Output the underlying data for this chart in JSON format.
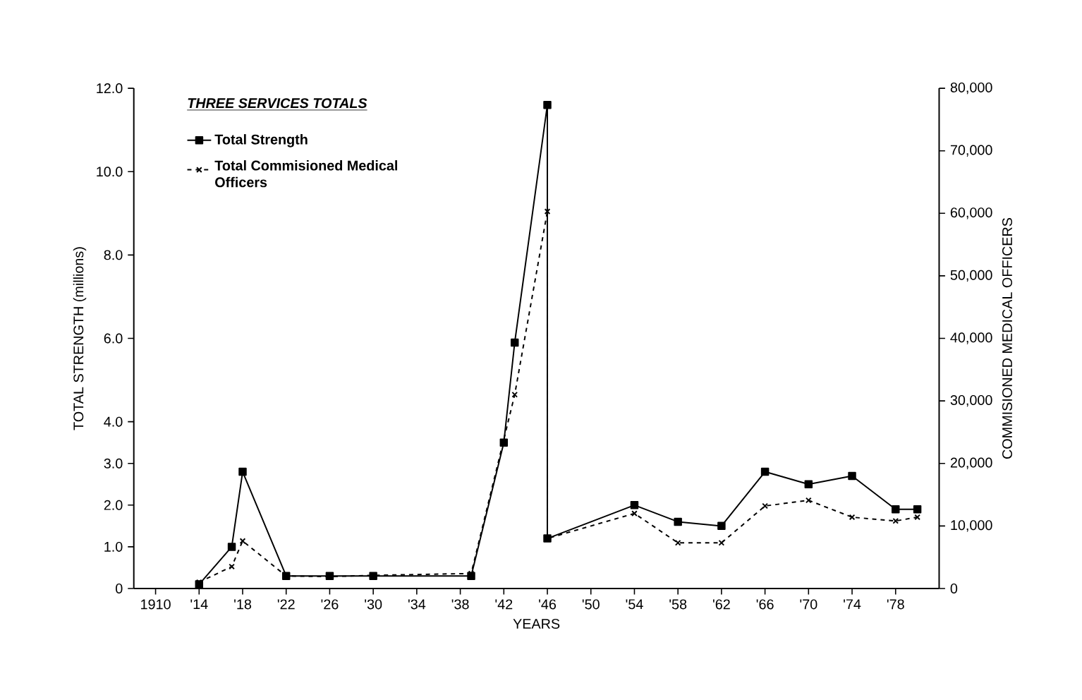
{
  "chart_data": {
    "type": "line",
    "legend_title": "THREE SERVICES TOTALS",
    "xlabel": "YEARS",
    "ylabel": "TOTAL STRENGTH (millions)",
    "y2label": "COMMISIONED MEDICAL OFFICERS",
    "legend": "top left",
    "xlim": [
      1908,
      1982
    ],
    "xticks": [
      1910,
      {
        "value": 1914,
        "label": "'14"
      },
      {
        "value": 1918,
        "label": "'18"
      },
      {
        "value": 1922,
        "label": "'22"
      },
      {
        "value": 1926,
        "label": "'26"
      },
      {
        "value": 1930,
        "label": "'30"
      },
      {
        "value": 1934,
        "label": "'34"
      },
      {
        "value": 1938,
        "label": "'38"
      },
      {
        "value": 1942,
        "label": "'42"
      },
      {
        "value": 1946,
        "label": "'46"
      },
      {
        "value": 1950,
        "label": "'50"
      },
      {
        "value": 1954,
        "label": "'54"
      },
      {
        "value": 1958,
        "label": "'58"
      },
      {
        "value": 1962,
        "label": "'62"
      },
      {
        "value": 1966,
        "label": "'66"
      },
      {
        "value": 1970,
        "label": "'70"
      },
      {
        "value": 1974,
        "label": "'74"
      },
      {
        "value": 1978,
        "label": "'78"
      }
    ],
    "ylim": [
      0,
      12
    ],
    "yticks": [
      0,
      {
        "value": 1,
        "label": "1.0"
      },
      {
        "value": 2,
        "label": "2.0"
      },
      {
        "value": 3,
        "label": "3.0"
      },
      {
        "value": 4,
        "label": "4.0"
      },
      {
        "value": 6,
        "label": "6.0"
      },
      {
        "value": 8,
        "label": "8.0"
      },
      {
        "value": 10,
        "label": "10.0"
      },
      {
        "value": 12,
        "label": "12.0"
      }
    ],
    "y2lim": [
      0,
      80000
    ],
    "y2ticks": [
      0,
      {
        "value": 10000,
        "label": "10,000"
      },
      {
        "value": 20000,
        "label": "20,000"
      },
      {
        "value": 30000,
        "label": "30,000"
      },
      {
        "value": 40000,
        "label": "40,000"
      },
      {
        "value": 50000,
        "label": "50,000"
      },
      {
        "value": 60000,
        "label": "60,000"
      },
      {
        "value": 70000,
        "label": "70,000"
      },
      {
        "value": 80000,
        "label": "80,000"
      }
    ],
    "series": [
      {
        "name": "Total Strength",
        "color": "#000000",
        "marker": "square",
        "line_style": "solid",
        "x": [
          1914,
          1917,
          1918,
          1922,
          1926,
          1930,
          1939,
          1942,
          1943,
          1946,
          1946,
          1954,
          1958,
          1962,
          1966,
          1970,
          1974,
          1978,
          1980
        ],
        "values": [
          0.1,
          1.0,
          2.8,
          0.3,
          0.3,
          0.3,
          0.3,
          3.5,
          5.9,
          11.6,
          1.2,
          2.0,
          1.6,
          1.5,
          2.8,
          2.5,
          2.7,
          1.9,
          1.9
        ]
      },
      {
        "name": "Total Commisioned Medical Officers",
        "color": "#000000",
        "marker": "cross",
        "line_style": "dashed",
        "axis": "y2",
        "x": [
          1914,
          1917,
          1918,
          1922,
          1926,
          1930,
          1939,
          1943,
          1946,
          1946,
          1954,
          1958,
          1962,
          1966,
          1970,
          1974,
          1978,
          1980
        ],
        "values": [
          1000,
          3500,
          7600,
          2000,
          1900,
          2100,
          2400,
          31000,
          60300,
          8000,
          12000,
          7300,
          7300,
          13200,
          14100,
          11400,
          10800,
          11400
        ]
      }
    ]
  }
}
